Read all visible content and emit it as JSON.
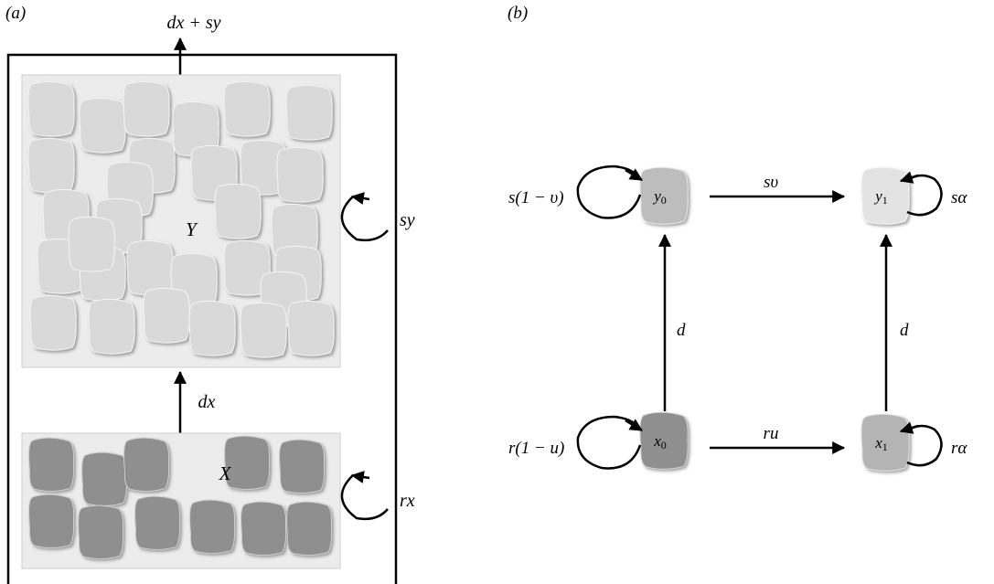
{
  "panel_a": {
    "label": "(a)",
    "top_flow": "dx + sy",
    "y_compartment": "Y",
    "x_compartment": "X",
    "mid_flow": "dx",
    "y_loop": "sy",
    "x_loop": "rx",
    "colors": {
      "y_cells": "#d9d9d9",
      "x_cells": "#8f8f8f",
      "bg": "#ececec"
    }
  },
  "panel_b": {
    "label": "(b)",
    "nodes": {
      "y0": "y0",
      "y1": "y1",
      "x0": "x0",
      "x1": "x1"
    },
    "edges": {
      "y0_y1": "sυ",
      "x0_x1": "ru",
      "x0_y0": "d",
      "x1_y1": "d"
    },
    "loops": {
      "y0": "s(1 − υ)",
      "y1": "sα",
      "x0": "r(1 − u)",
      "x1": "rα"
    },
    "colors": {
      "y0": "#bdbdbd",
      "y1": "#e3e3e3",
      "x0": "#8f8f8f",
      "x1": "#b4b4b4"
    }
  }
}
